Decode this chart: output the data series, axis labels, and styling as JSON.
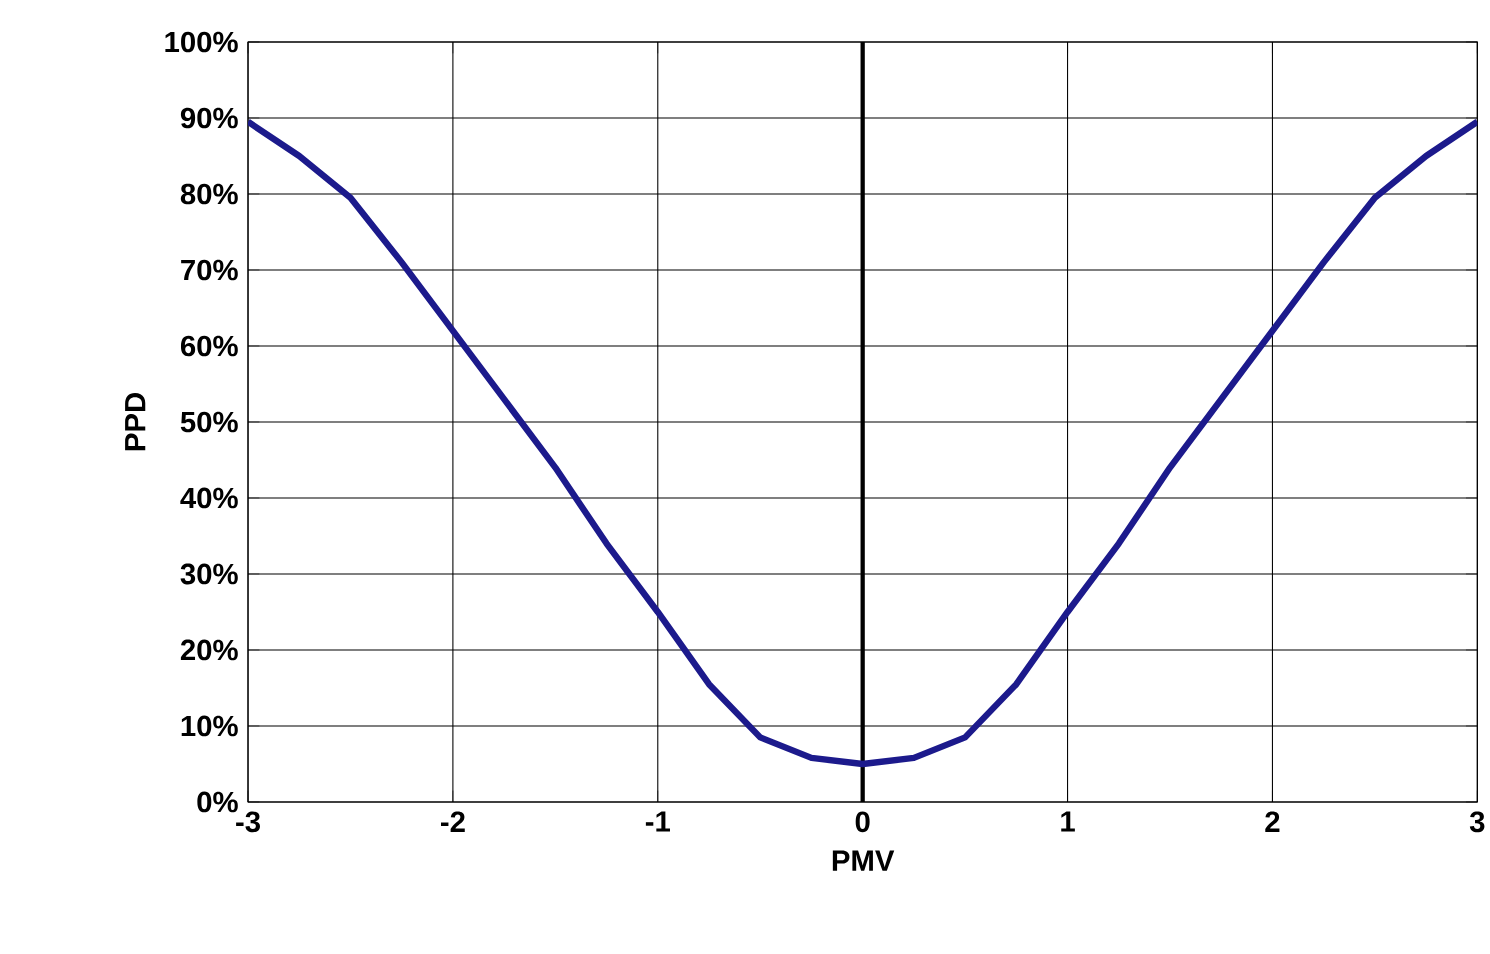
{
  "chart_data": {
    "type": "line",
    "xlabel": "PMV",
    "ylabel": "PPD",
    "x": [
      -3,
      -2.75,
      -2.5,
      -2.25,
      -2,
      -1.75,
      -1.5,
      -1.25,
      -1,
      -0.75,
      -0.5,
      -0.25,
      0,
      0.25,
      0.5,
      0.75,
      1,
      1.25,
      1.5,
      1.75,
      2,
      2.25,
      2.5,
      2.75,
      3
    ],
    "series": [
      {
        "color": "#1c1a8c",
        "values": [
          89.5,
          85,
          79.5,
          71,
          62,
          53,
          44,
          34,
          25,
          15.5,
          8.5,
          5.8,
          5,
          5.8,
          8.5,
          15.5,
          25,
          34,
          44,
          53,
          62,
          71,
          79.5,
          85,
          89.5
        ]
      }
    ],
    "xlim": [
      -3,
      3
    ],
    "xticks": [
      -3,
      -2,
      -1,
      0,
      1,
      2,
      3
    ],
    "ylim": [
      0,
      100
    ],
    "yticks": [
      {
        "value": 0,
        "label": "0%"
      },
      {
        "value": 10,
        "label": "10%"
      },
      {
        "value": 20,
        "label": "20%"
      },
      {
        "value": 30,
        "label": "30%"
      },
      {
        "value": 40,
        "label": "40%"
      },
      {
        "value": 50,
        "label": "50%"
      },
      {
        "value": 60,
        "label": "60%"
      },
      {
        "value": 70,
        "label": "70%"
      },
      {
        "value": 80,
        "label": "80%"
      },
      {
        "value": 90,
        "label": "90%"
      },
      {
        "value": 100,
        "label": "100%"
      }
    ],
    "grid": true,
    "marker": "none",
    "line_style": "solid",
    "ref_lines": [
      {
        "axis": "x",
        "value": 0,
        "color": "#000000"
      }
    ]
  }
}
